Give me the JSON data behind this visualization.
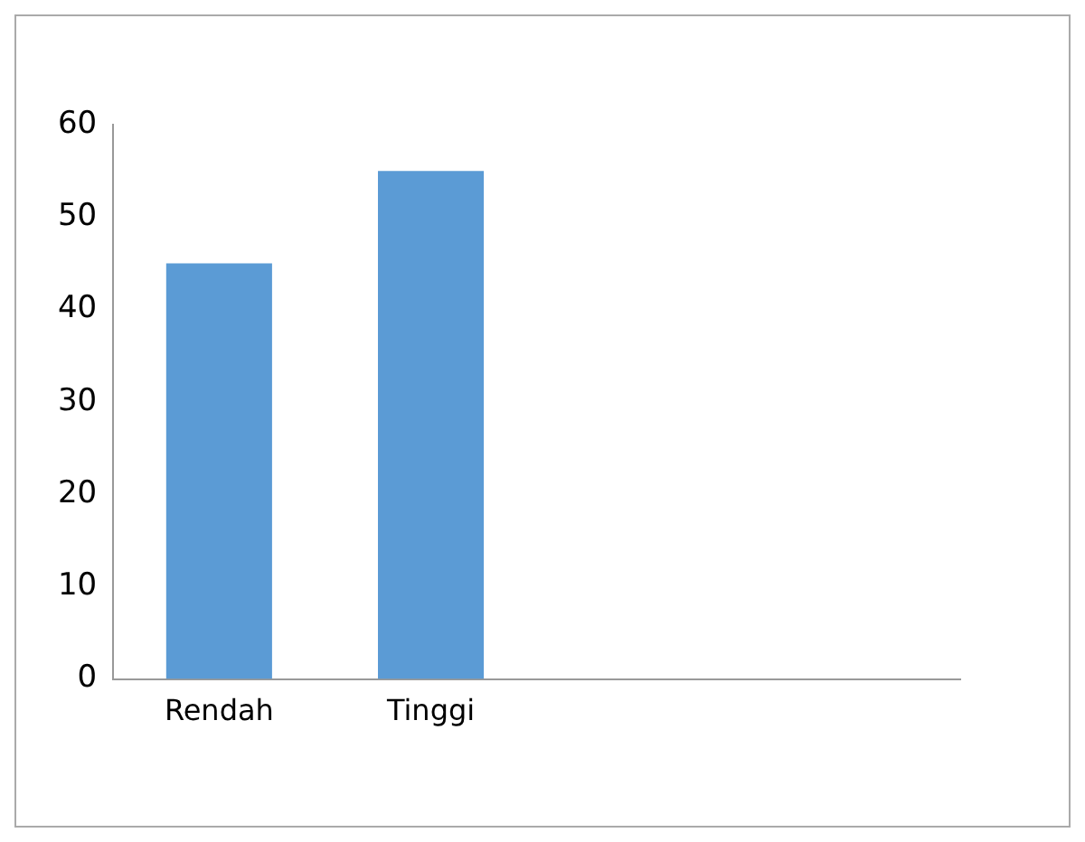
{
  "chart_data": {
    "type": "bar",
    "categories": [
      "Rendah",
      "Tinggi",
      null,
      null
    ],
    "values": [
      45,
      55,
      null,
      null
    ],
    "color": "#5b9bd5",
    "ylim": [
      0,
      60
    ],
    "yticks": [
      0,
      10,
      20,
      30,
      40,
      50,
      60
    ],
    "grid": false,
    "legend": false
  }
}
